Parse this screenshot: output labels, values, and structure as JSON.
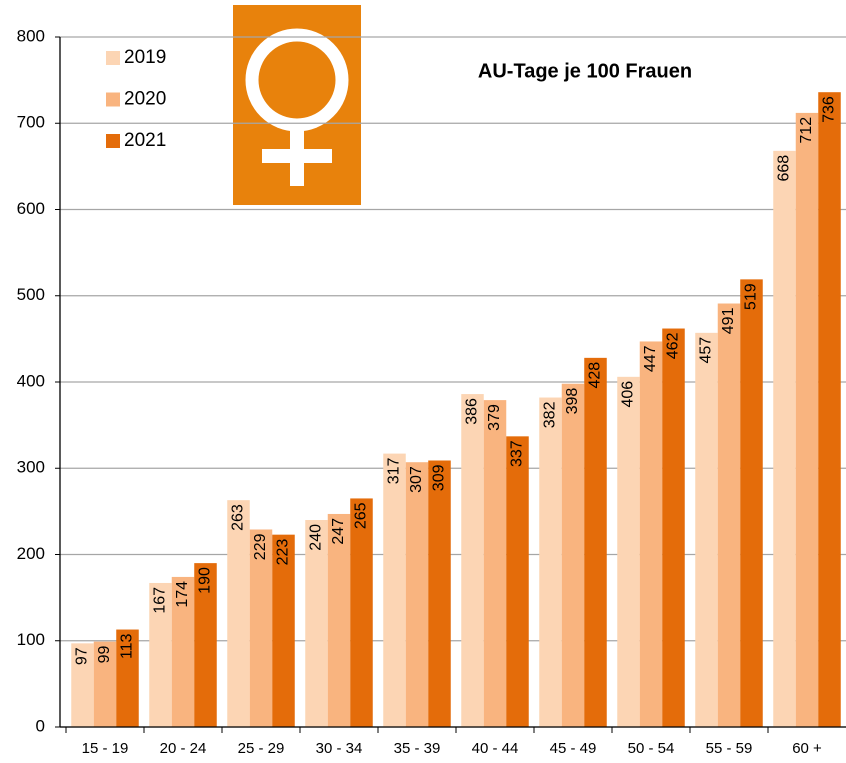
{
  "chart_data": {
    "type": "bar",
    "title": "AU-Tage je 100 Frauen",
    "categories": [
      "15 - 19",
      "20 - 24",
      "25 - 29",
      "30 - 34",
      "35 - 39",
      "40 - 44",
      "45 - 49",
      "50 - 54",
      "55 - 59",
      "60 +"
    ],
    "series": [
      {
        "name": "2019",
        "color": "#fcd5b4",
        "values": [
          97,
          167,
          263,
          240,
          317,
          386,
          382,
          406,
          457,
          668
        ]
      },
      {
        "name": "2020",
        "color": "#f9b47f",
        "values": [
          99,
          174,
          229,
          247,
          307,
          379,
          398,
          447,
          491,
          712
        ]
      },
      {
        "name": "2021",
        "color": "#e46c0a",
        "values": [
          113,
          190,
          223,
          265,
          309,
          337,
          428,
          462,
          519,
          736
        ]
      }
    ],
    "ylim": [
      0,
      800
    ],
    "yticks": [
      0,
      100,
      200,
      300,
      400,
      500,
      600,
      700,
      800
    ],
    "grid": true,
    "legend": "top-left"
  }
}
